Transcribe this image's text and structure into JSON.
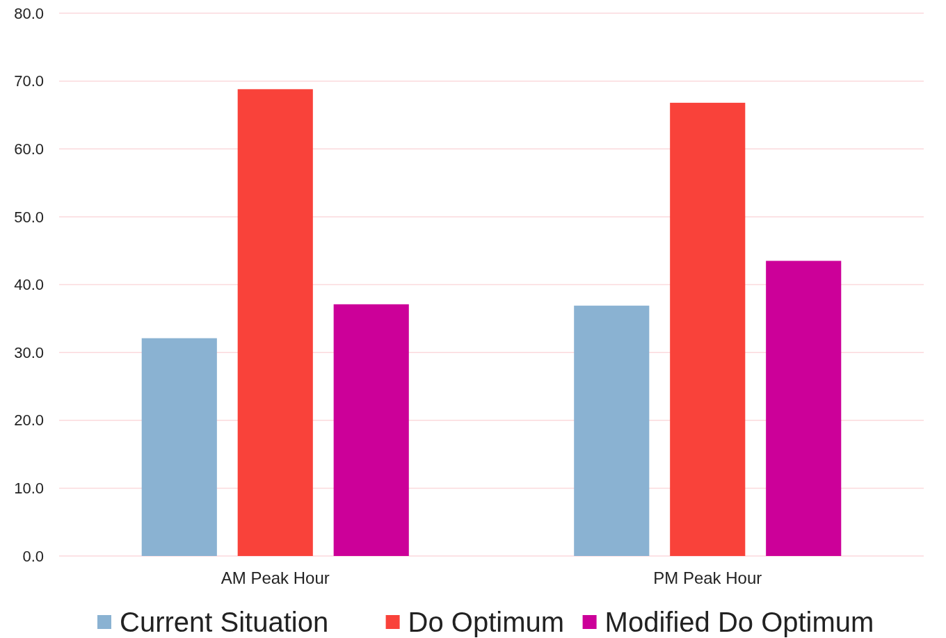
{
  "chart_data": {
    "type": "bar",
    "categories": [
      "AM Peak Hour",
      "PM Peak Hour"
    ],
    "series": [
      {
        "name": "Current Situation",
        "color": "#8ab2d2",
        "values": [
          32.1,
          36.9
        ]
      },
      {
        "name": "Do Optimum",
        "color": "#f9423a",
        "values": [
          68.8,
          66.8
        ]
      },
      {
        "name": "Modified Do Optimum",
        "color": "#cc0099",
        "values": [
          37.1,
          43.5
        ]
      }
    ],
    "ylim": [
      0,
      80
    ],
    "yticks": [
      {
        "value": 0,
        "label": "0.0"
      },
      {
        "value": 10,
        "label": "10.0"
      },
      {
        "value": 20,
        "label": "20.0"
      },
      {
        "value": 30,
        "label": "30.0"
      },
      {
        "value": 40,
        "label": "40.0"
      },
      {
        "value": 50,
        "label": "50.0"
      },
      {
        "value": 60,
        "label": "60.0"
      },
      {
        "value": 70,
        "label": "70.0"
      },
      {
        "value": 80,
        "label": "80.0"
      }
    ],
    "grid": "y",
    "legend": "bottom"
  }
}
